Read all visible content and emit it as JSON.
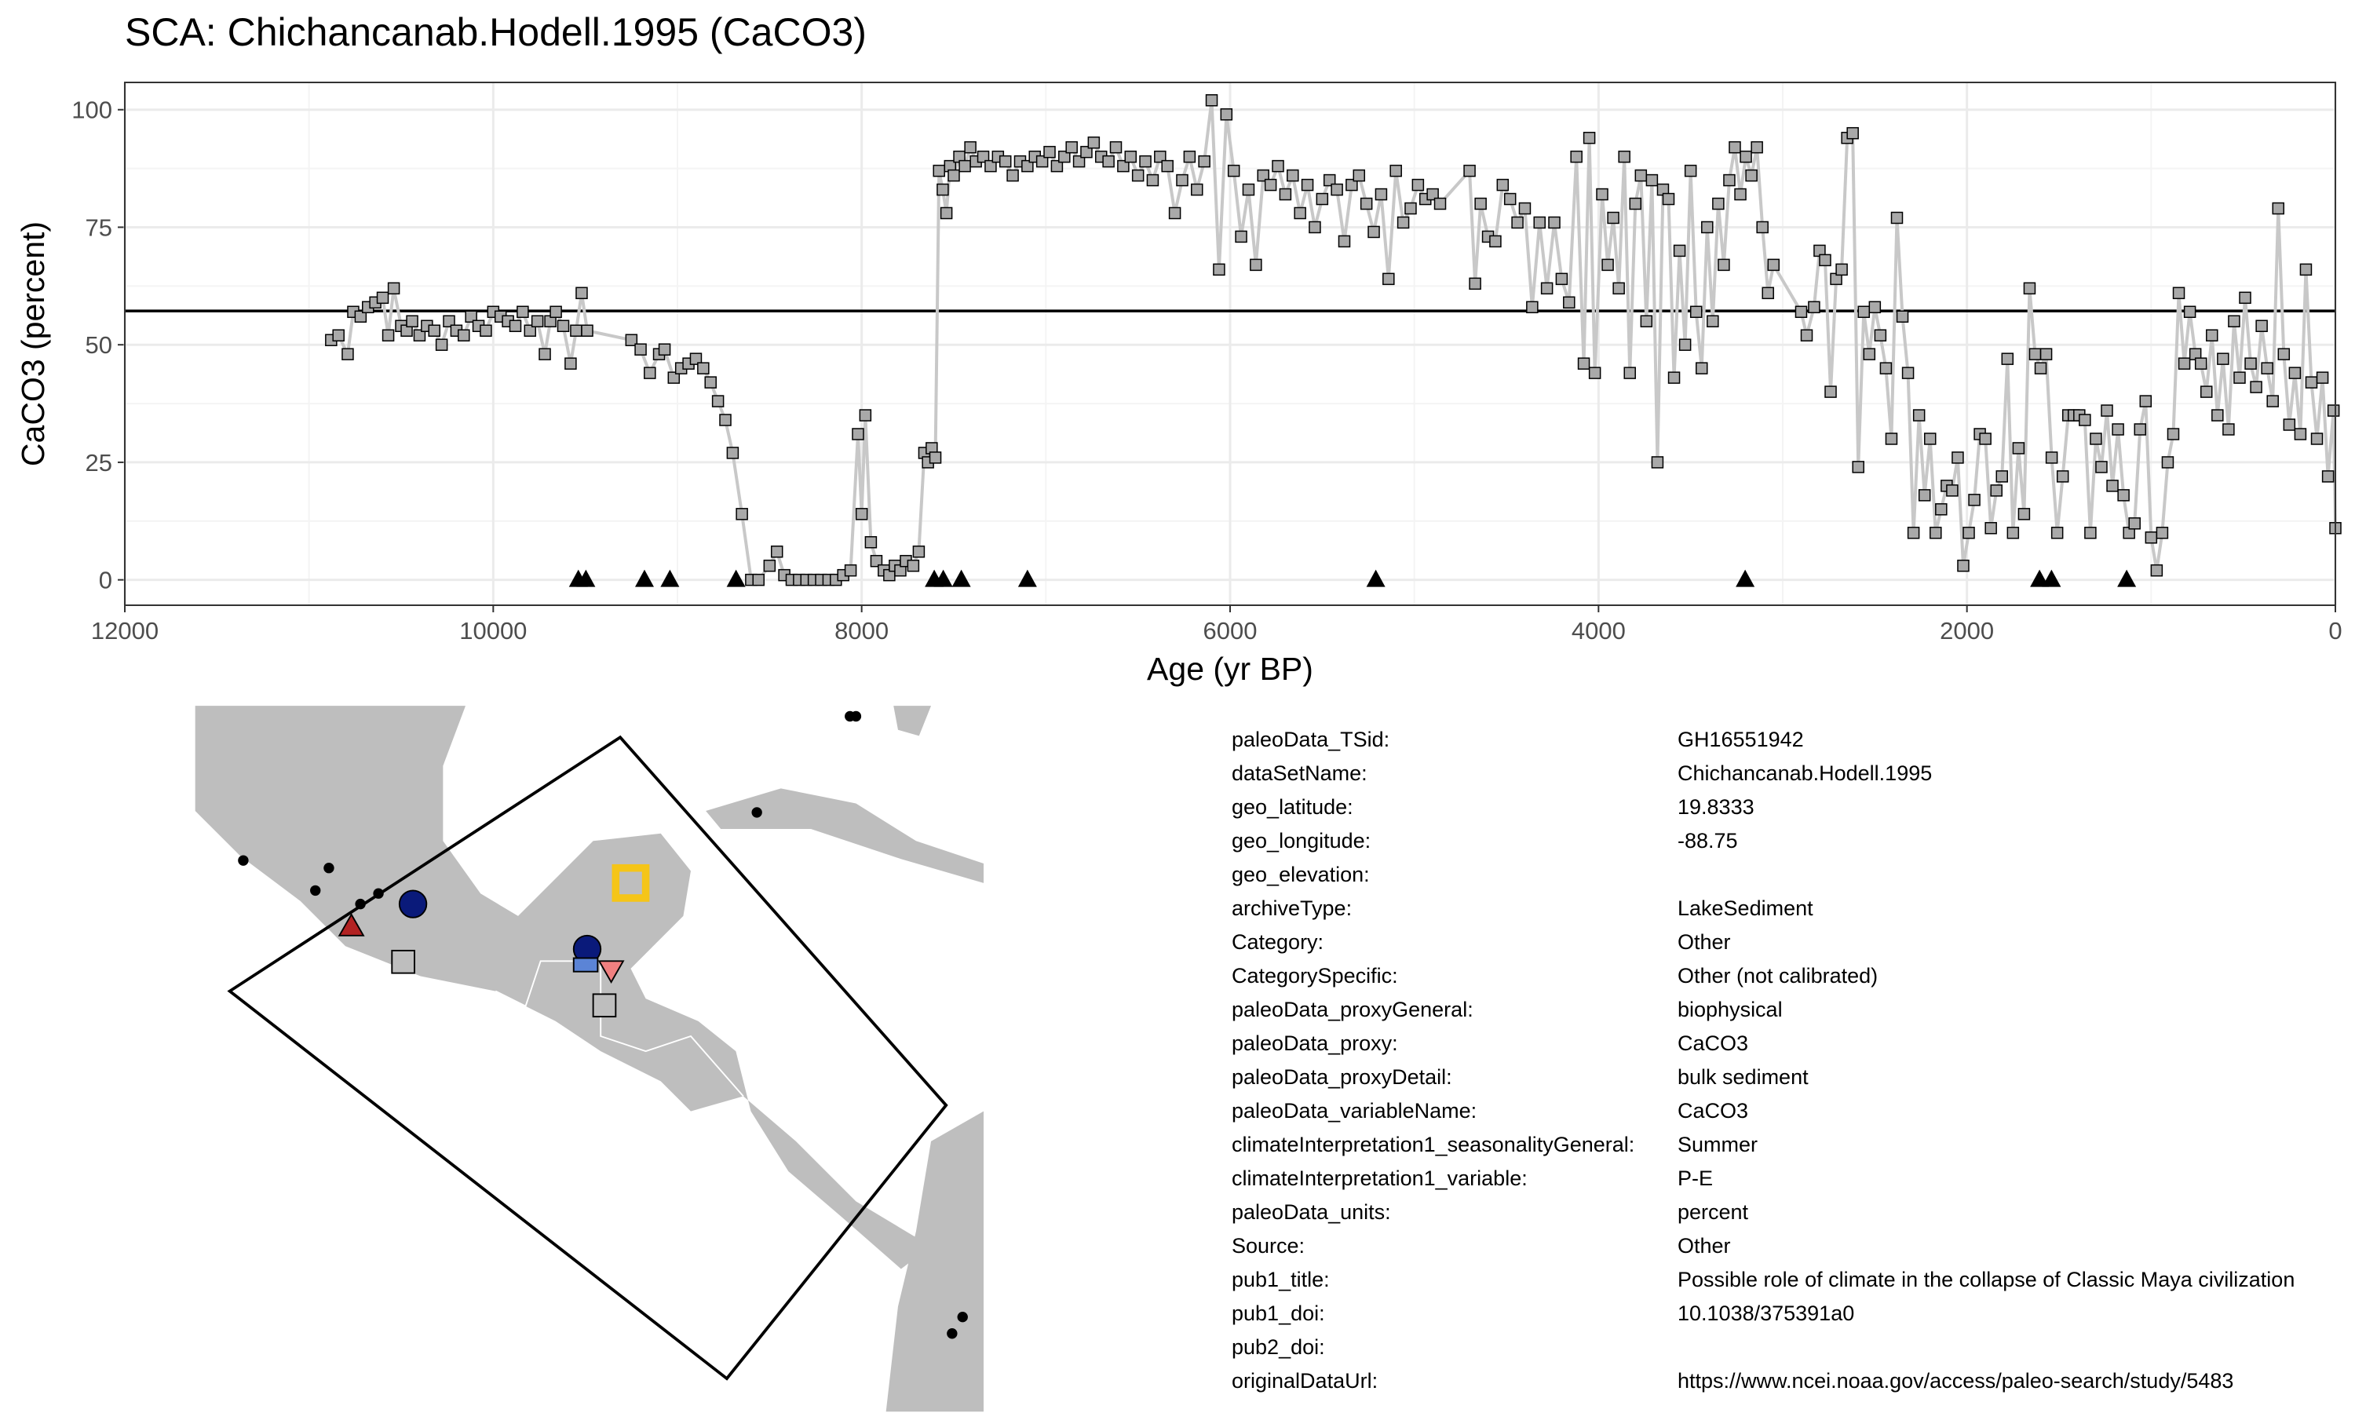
{
  "chart_data": {
    "type": "line",
    "title": "SCA: Chichancanab.Hodell.1995 (CaCO3)",
    "xlabel": "Age (yr BP)",
    "ylabel": "CaCO3 (percent)",
    "xlim": [
      12000,
      0
    ],
    "ylim": [
      -5.4,
      105.8
    ],
    "xticks": [
      12000,
      10000,
      8000,
      6000,
      4000,
      2000,
      0
    ],
    "yticks": [
      0,
      25,
      50,
      75,
      100
    ],
    "grid": true,
    "line_color": "#c8c8c8",
    "marker_color": "#a9a9a9",
    "hline": 57.2,
    "x": [
      10880,
      10840,
      10790,
      10760,
      10720,
      10680,
      10640,
      10600,
      10570,
      10540,
      10500,
      10470,
      10440,
      10400,
      10360,
      10320,
      10280,
      10240,
      10200,
      10160,
      10120,
      10080,
      10040,
      10000,
      9960,
      9920,
      9880,
      9840,
      9800,
      9760,
      9720,
      9690,
      9660,
      9620,
      9580,
      9550,
      9520,
      9490,
      9250,
      9200,
      9150,
      9100,
      9070,
      9020,
      8980,
      8940,
      8900,
      8860,
      8820,
      8780,
      8740,
      8700,
      8650,
      8600,
      8560,
      8500,
      8460,
      8420,
      8380,
      8340,
      8300,
      8260,
      8220,
      8180,
      8140,
      8100,
      8060,
      8020,
      8000,
      7980,
      7950,
      7920,
      7880,
      7850,
      7820,
      7790,
      7760,
      7720,
      7690,
      7660,
      7640,
      7620,
      7600,
      7580,
      7560,
      7540,
      7520,
      7500,
      7470,
      7440,
      7410,
      7380,
      7340,
      7300,
      7260,
      7220,
      7180,
      7140,
      7100,
      7060,
      7020,
      6980,
      6940,
      6900,
      6860,
      6820,
      6780,
      6740,
      6700,
      6660,
      6620,
      6580,
      6540,
      6500,
      6460,
      6420,
      6380,
      6340,
      6300,
      6260,
      6220,
      6180,
      6140,
      6100,
      6060,
      6020,
      5980,
      5940,
      5900,
      5860,
      5820,
      5780,
      5740,
      5700,
      5660,
      5620,
      5580,
      5540,
      5500,
      5460,
      5420,
      5380,
      5340,
      5300,
      5260,
      5220,
      5180,
      5140,
      5100,
      5060,
      5020,
      4980,
      4940,
      4900,
      4860,
      4700,
      4670,
      4640,
      4600,
      4560,
      4520,
      4480,
      4440,
      4400,
      4360,
      4320,
      4280,
      4240,
      4200,
      4160,
      4120,
      4080,
      4050,
      4020,
      3980,
      3950,
      3920,
      3890,
      3860,
      3830,
      3800,
      3770,
      3740,
      3710,
      3680,
      3650,
      3620,
      3590,
      3560,
      3530,
      3500,
      3470,
      3440,
      3410,
      3380,
      3350,
      3320,
      3290,
      3260,
      3230,
      3200,
      3170,
      3140,
      3110,
      3080,
      3050,
      2900,
      2870,
      2830,
      2800,
      2770,
      2740,
      2710,
      2680,
      2650,
      2620,
      2590,
      2560,
      2530,
      2500,
      2470,
      2440,
      2410,
      2380,
      2350,
      2320,
      2290,
      2260,
      2230,
      2200,
      2170,
      2140,
      2110,
      2080,
      2050,
      2020,
      1990,
      1960,
      1930,
      1900,
      1870,
      1840,
      1810,
      1780,
      1750,
      1720,
      1690,
      1660,
      1630,
      1600,
      1570,
      1540,
      1510,
      1480,
      1450,
      1420,
      1390,
      1360,
      1330,
      1300,
      1270,
      1240,
      1210,
      1180,
      1150,
      1120,
      1090,
      1060,
      1030,
      1000,
      970,
      940,
      910,
      880,
      850,
      820,
      790,
      760,
      730,
      700,
      670,
      640,
      610,
      580,
      550,
      520,
      490,
      460,
      430,
      400,
      370,
      340,
      310,
      280,
      250,
      220,
      190,
      160,
      130,
      100,
      70,
      40,
      10,
      0
    ],
    "values": [
      51,
      52,
      48,
      57,
      56,
      58,
      59,
      60,
      52,
      62,
      54,
      53,
      55,
      52,
      54,
      53,
      50,
      55,
      53,
      52,
      56,
      54,
      53,
      57,
      56,
      55,
      54,
      57,
      53,
      55,
      48,
      55,
      57,
      54,
      46,
      53,
      61,
      53,
      51,
      49,
      44,
      48,
      49,
      43,
      45,
      46,
      47,
      45,
      42,
      38,
      34,
      27,
      14,
      0,
      0,
      3,
      6,
      1,
      0,
      0,
      0,
      0,
      0,
      0,
      0,
      1,
      2,
      31,
      14,
      35,
      8,
      4,
      2,
      1,
      3,
      2,
      4,
      3,
      6,
      27,
      25,
      28,
      26,
      87,
      83,
      78,
      88,
      86,
      90,
      88,
      92,
      89,
      90,
      88,
      90,
      89,
      86,
      89,
      88,
      90,
      89,
      91,
      88,
      90,
      92,
      89,
      91,
      93,
      90,
      89,
      92,
      88,
      90,
      86,
      89,
      85,
      90,
      88,
      78,
      85,
      90,
      83,
      89,
      102,
      66,
      99,
      87,
      73,
      83,
      67,
      86,
      84,
      88,
      82,
      86,
      78,
      84,
      75,
      81,
      85,
      83,
      72,
      84,
      86,
      80,
      74,
      82,
      64,
      87,
      76,
      79,
      84,
      81,
      82,
      80,
      87,
      63,
      80,
      73,
      72,
      84,
      81,
      76,
      79,
      58,
      76,
      62,
      76,
      64,
      59,
      90,
      46,
      94,
      44,
      82,
      67,
      77,
      62,
      90,
      44,
      80,
      86,
      55,
      85,
      25,
      83,
      81,
      43,
      70,
      50,
      87,
      57,
      45,
      75,
      55,
      80,
      67,
      85,
      92,
      82,
      90,
      86,
      92,
      75,
      61,
      67,
      57,
      52,
      58,
      70,
      68,
      40,
      64,
      66,
      94,
      95,
      24,
      57,
      48,
      58,
      52,
      45,
      30,
      77,
      56,
      44,
      10,
      35,
      18,
      30,
      10,
      15,
      20,
      19,
      26,
      3,
      10,
      17,
      31,
      30,
      11,
      19,
      22,
      47,
      10,
      28,
      14,
      62,
      48,
      45,
      48,
      26,
      10,
      22,
      35,
      35,
      35,
      34,
      10,
      30,
      24,
      36,
      20,
      32,
      18,
      10,
      12,
      32,
      38,
      9,
      2,
      10,
      25,
      31,
      61,
      46,
      57,
      48,
      46,
      40,
      52,
      35,
      47,
      32,
      55,
      43,
      60,
      46,
      41,
      54,
      45,
      38,
      79,
      48,
      33,
      44,
      31,
      66,
      42,
      30,
      43,
      22,
      36,
      11
    ],
    "tie_points": {
      "x": [
        9538,
        9497,
        9179,
        9041,
        8682,
        7606,
        7557,
        7459,
        7100,
        5209,
        3204,
        1606,
        1541,
        1133
      ],
      "values": [
        0,
        0,
        0,
        0,
        0,
        0,
        0,
        0,
        0,
        0,
        0,
        0,
        0,
        0
      ]
    }
  },
  "metadata": {
    "rows": [
      {
        "key": "paleoData_TSid:",
        "value": "GH16551942"
      },
      {
        "key": "dataSetName:",
        "value": "Chichancanab.Hodell.1995"
      },
      {
        "key": "geo_latitude:",
        "value": "19.8333"
      },
      {
        "key": "geo_longitude:",
        "value": "-88.75"
      },
      {
        "key": "geo_elevation:"
      },
      {
        "key": "archiveType:",
        "value": "LakeSediment"
      },
      {
        "key": "Category:",
        "value": "Other"
      },
      {
        "key": "CategorySpecific:",
        "value": "Other (not calibrated)"
      },
      {
        "key": "paleoData_proxyGeneral:",
        "value": "biophysical"
      },
      {
        "key": "paleoData_proxy:",
        "value": "CaCO3"
      },
      {
        "key": "paleoData_proxyDetail:",
        "value": "bulk sediment"
      },
      {
        "key": "paleoData_variableName:",
        "value": "CaCO3"
      },
      {
        "key": "climateInterpretation1_seasonalityGeneral:",
        "value": "Summer"
      },
      {
        "key": "climateInterpretation1_variable:",
        "value": "P-E"
      },
      {
        "key": "paleoData_units:",
        "value": "percent"
      },
      {
        "key": "Source:",
        "value": "Other"
      },
      {
        "key": "pub1_title:",
        "value": "Possible role of climate in the collapse of Classic Maya civilization"
      },
      {
        "key": "pub1_doi:",
        "value": "10.1038/375391a0"
      },
      {
        "key": "pub2_doi:"
      },
      {
        "key": "originalDataUrl:",
        "value": "https://www.ncei.noaa.gov/access/paleo-search/study/5483"
      }
    ]
  }
}
